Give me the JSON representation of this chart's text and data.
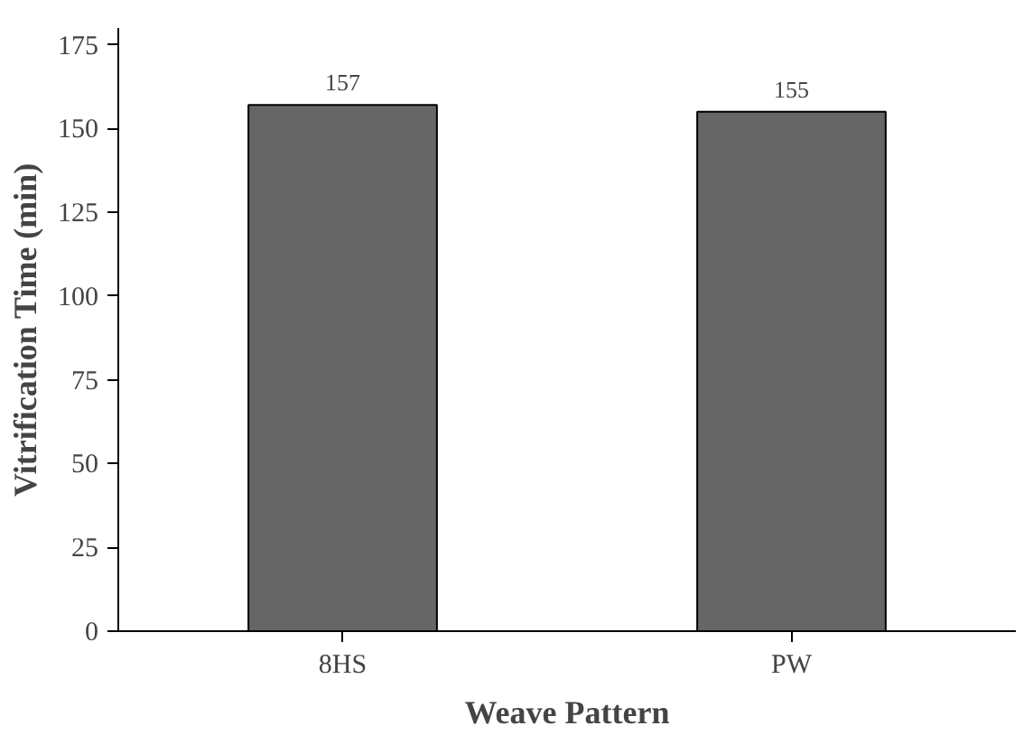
{
  "chart_data": {
    "type": "bar",
    "xlabel": "Weave Pattern",
    "ylabel": "Vitrification Time (min)",
    "categories": [
      "8HS",
      "PW"
    ],
    "values": [
      157,
      155
    ],
    "color": "#666666",
    "ylim": [
      0,
      180
    ],
    "yticks": [
      0,
      25,
      50,
      75,
      100,
      125,
      150,
      175
    ],
    "grid": false,
    "data_labels": true
  }
}
